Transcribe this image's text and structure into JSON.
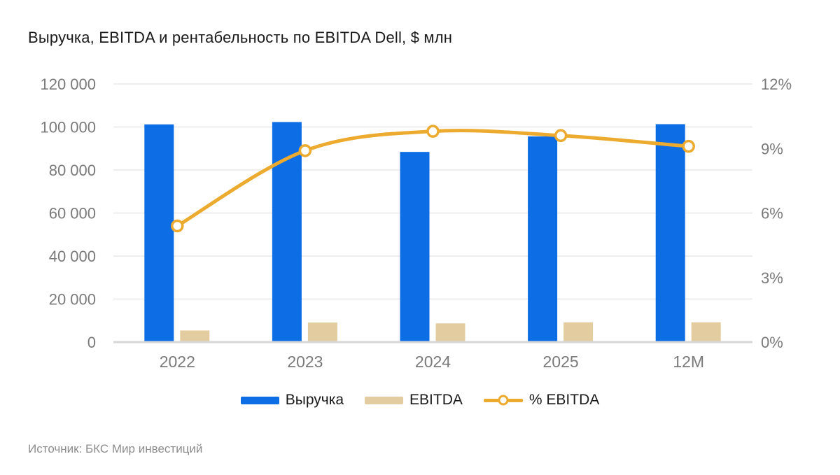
{
  "title": "Выручка, EBITDA и рентабельность по EBITDA Dell, $ млн",
  "source": "Источник: БКС Мир инвестиций",
  "colors": {
    "revenue": "#0d6de4",
    "ebitda": "#e3cda0",
    "line": "#ecaa2e",
    "grid": "#e8e8e8",
    "baseline": "#d6d6d6",
    "axis_text": "#7a7a7a",
    "marker_fill": "#ffffff"
  },
  "legend": {
    "items": [
      {
        "label": "Выручка",
        "type": "bar",
        "color_key": "revenue"
      },
      {
        "label": "EBITDA",
        "type": "bar",
        "color_key": "ebitda"
      },
      {
        "label": "% EBITDA",
        "type": "line",
        "color_key": "line"
      }
    ]
  },
  "chart_data": {
    "type": "combo",
    "title": "Выручка, EBITDA и рентабельность по EBITDA Dell, $ млн",
    "categories": [
      "2022",
      "2023",
      "2024",
      "2025",
      "12M"
    ],
    "series": [
      {
        "name": "Выручка",
        "type": "bar",
        "axis": "left",
        "color_key": "revenue",
        "values": [
          101200,
          102300,
          88400,
          95600,
          101300
        ]
      },
      {
        "name": "EBITDA",
        "type": "bar",
        "axis": "left",
        "color_key": "ebitda",
        "values": [
          5400,
          9100,
          8700,
          9200,
          9200
        ]
      },
      {
        "name": "% EBITDA",
        "type": "line",
        "axis": "right",
        "color_key": "line",
        "values": [
          5.4,
          8.9,
          9.8,
          9.6,
          9.1
        ]
      }
    ],
    "left_axis": {
      "min": 0,
      "max": 120000,
      "ticks": [
        {
          "value": 0,
          "label": "0"
        },
        {
          "value": 20000,
          "label": "20 000"
        },
        {
          "value": 40000,
          "label": "40 000"
        },
        {
          "value": 60000,
          "label": "60 000"
        },
        {
          "value": 80000,
          "label": "80 000"
        },
        {
          "value": 100000,
          "label": "100 000"
        },
        {
          "value": 120000,
          "label": "120 000"
        }
      ]
    },
    "right_axis": {
      "min": 0,
      "max": 12,
      "ticks": [
        {
          "value": 0,
          "label": "0%"
        },
        {
          "value": 3,
          "label": "3%"
        },
        {
          "value": 6,
          "label": "6%"
        },
        {
          "value": 9,
          "label": "9%"
        },
        {
          "value": 12,
          "label": "12%"
        }
      ]
    },
    "grid": true,
    "legend_position": "bottom"
  }
}
